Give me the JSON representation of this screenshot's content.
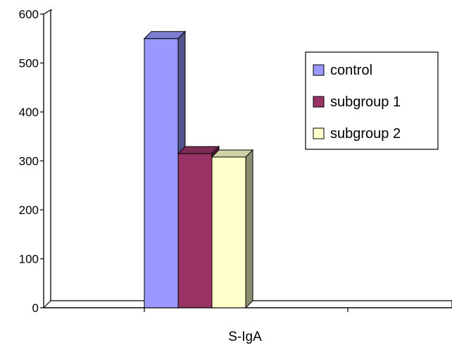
{
  "chart_data": {
    "type": "bar",
    "style": "3d-clustered-column",
    "categories": [
      "S-IgA"
    ],
    "series": [
      {
        "name": "control",
        "values": [
          550
        ],
        "color": "#9999ff"
      },
      {
        "name": "subgroup 1",
        "values": [
          315
        ],
        "color": "#993366"
      },
      {
        "name": "subgroup 2",
        "values": [
          308
        ],
        "color": "#ffffcc"
      }
    ],
    "yticks": [
      "0",
      "100",
      "200",
      "300",
      "400",
      "500",
      "600"
    ],
    "ylim": [
      0,
      600
    ],
    "grid": false,
    "legend_position": "top-right",
    "title": "",
    "xlabel": "",
    "ylabel": ""
  }
}
